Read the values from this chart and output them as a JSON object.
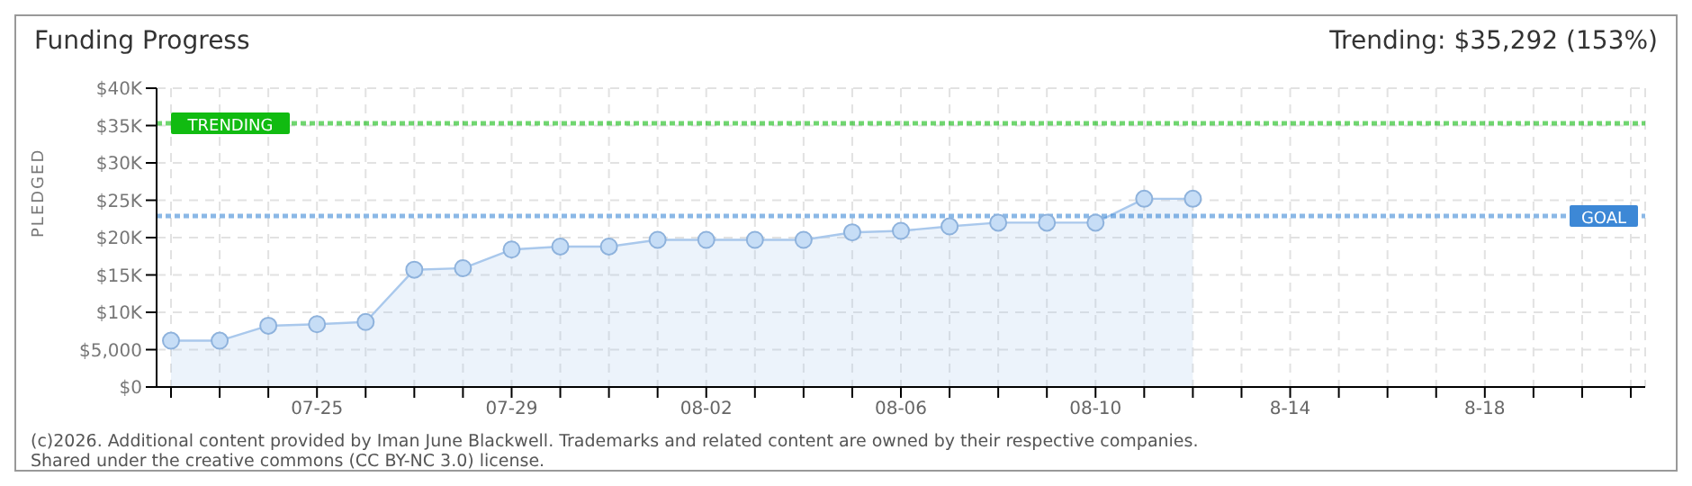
{
  "chart_data": {
    "type": "area",
    "title": "Funding Progress",
    "subtitle": "Trending: $35,292 (153%)",
    "ylabel": "PLEDGED",
    "categories": [
      null,
      null,
      null,
      "07-25",
      null,
      null,
      null,
      "07-29",
      null,
      null,
      null,
      "08-02",
      null,
      null,
      null,
      "08-06",
      null,
      null,
      null,
      "08-10",
      null,
      null,
      null,
      "8-14",
      null,
      null,
      null,
      "8-18",
      null,
      null,
      null
    ],
    "series": [
      {
        "color": "#a9c8ec",
        "values": [
          6200,
          6200,
          8200,
          8400,
          8700,
          15700,
          15900,
          18400,
          18800,
          18800,
          19700,
          19700,
          19700,
          19700,
          20700,
          20900,
          21500,
          22000,
          22000,
          22000,
          25200,
          25200,
          null,
          null,
          null,
          null,
          null,
          null,
          null,
          null,
          null
        ]
      }
    ],
    "ylim": [
      0,
      40000
    ],
    "yticks": [
      {
        "value": 0,
        "label": "$0"
      },
      {
        "value": 5000,
        "label": "$5,000"
      },
      {
        "value": 10000,
        "label": "$10K"
      },
      {
        "value": 15000,
        "label": "$15K"
      },
      {
        "value": 20000,
        "label": "$20K"
      },
      {
        "value": 25000,
        "label": "$25K"
      },
      {
        "value": 30000,
        "label": "$30K"
      },
      {
        "value": 35000,
        "label": "$35K"
      },
      {
        "value": 40000,
        "label": "$40K"
      }
    ],
    "ref_lines": [
      {
        "axis": "y",
        "value": 35292,
        "label": "TRENDING",
        "color": "#11bb11",
        "line_style": "dotted"
      },
      {
        "axis": "y",
        "value": 22900,
        "label": "GOAL",
        "color": "#3d88d6",
        "line_style": "dotted"
      }
    ],
    "grid": true,
    "marker": "circle",
    "line_style": "solid",
    "annotations": [
      "(c)2026. Additional content provided by Iman June Blackwell. Trademarks and related content are owned by their respective companies.",
      "Shared under the creative commons (CC BY-NC 3.0) license."
    ]
  }
}
